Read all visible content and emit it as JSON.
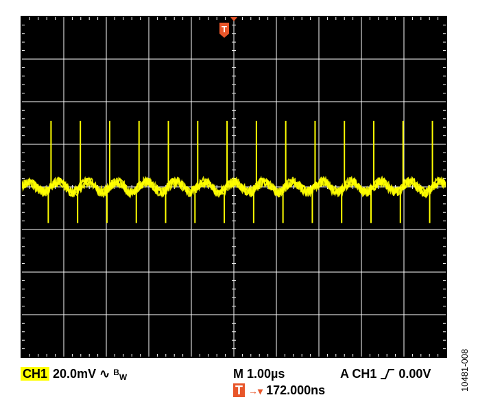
{
  "chart_data": {
    "type": "line",
    "title": "",
    "xlabel": "",
    "ylabel": "",
    "divisions": {
      "x": 10,
      "y": 8
    },
    "grid": true,
    "series": [
      {
        "color": "#ffff00",
        "description_values": {
          "baseline_div": 0.0,
          "positive_spike_div": 1.55,
          "negative_spike_div": -0.85,
          "spike_period_div": 0.69,
          "spike_count": 14
        }
      }
    ]
  },
  "readouts": {
    "channel": "CH1",
    "scale": "20.0mV",
    "bw_sup": "B",
    "bw_sub": "W",
    "timebase": "M 1.00µs",
    "trigger": "A  CH1",
    "trigger_level": "0.00V",
    "trigger_marker": "T",
    "trigger_offset": "172.000ns"
  },
  "figure_id": "10481-008",
  "colors": {
    "screen": "#000000",
    "grid": "#ffffff",
    "trace": "#ffff00",
    "trigger": "#e8562a"
  }
}
